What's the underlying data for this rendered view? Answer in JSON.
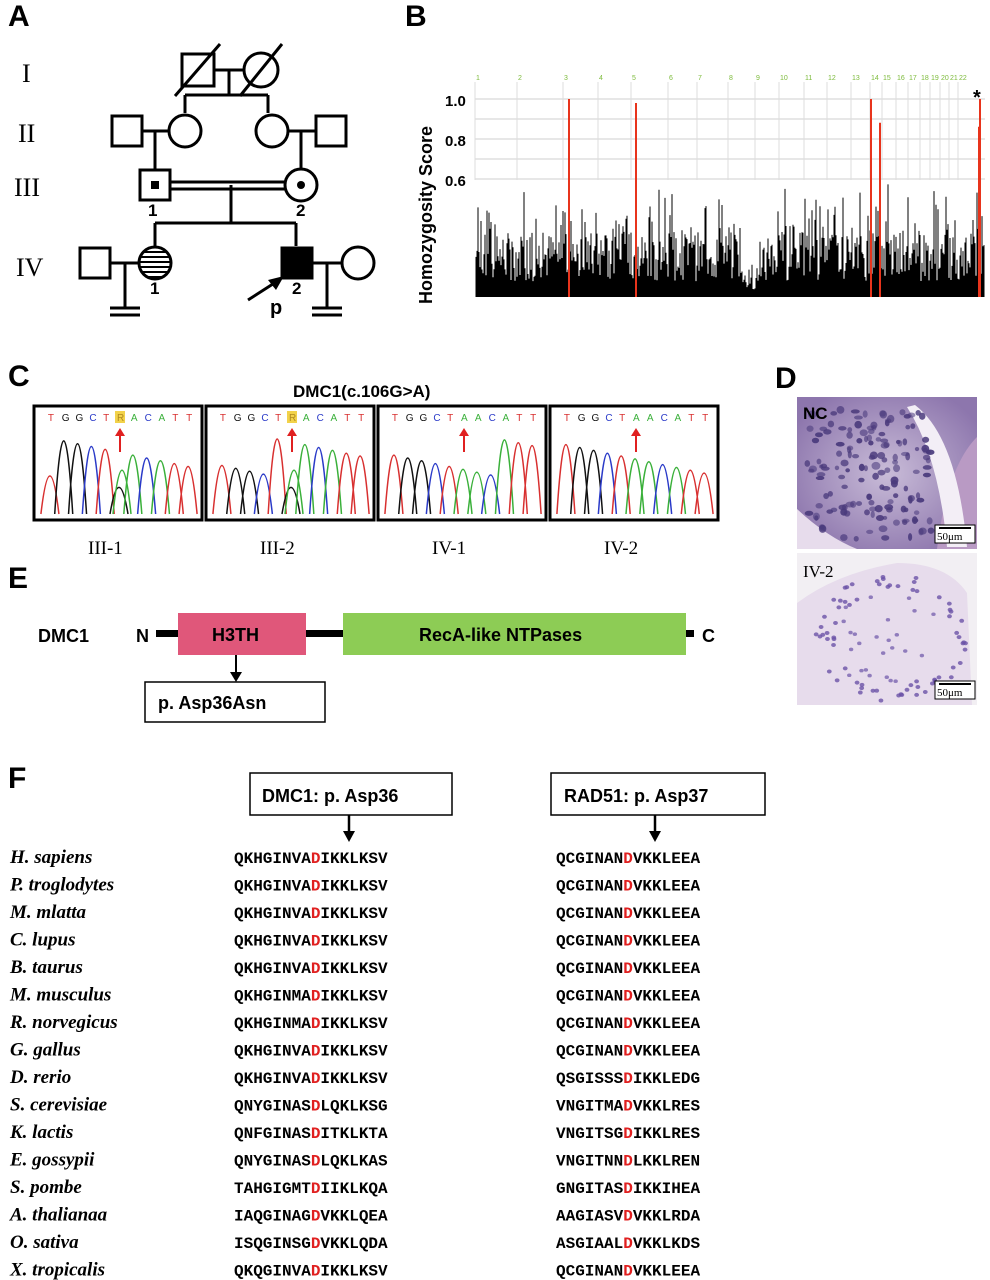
{
  "panels": {
    "A": "A",
    "B": "B",
    "C": "C",
    "D": "D",
    "E": "E",
    "F": "F"
  },
  "pedigree": {
    "generations": [
      "I",
      "II",
      "III",
      "IV"
    ],
    "labels": {
      "III1": "1",
      "III2": "2",
      "IV1": "1",
      "IV2": "2",
      "proband": "p"
    }
  },
  "homozygosity": {
    "ylabel": "Homozygosity Score",
    "yticks": [
      "1.0",
      "0.8",
      "0.6"
    ],
    "chromosomes": [
      "1",
      "2",
      "3",
      "4",
      "5",
      "6",
      "7",
      "8",
      "9",
      "10",
      "11",
      "12",
      "13",
      "14",
      "15",
      "16",
      "17",
      "18",
      "19",
      "20",
      "21",
      "22"
    ],
    "star": "*",
    "colors": {
      "bars": "#000000",
      "highlight": "#e8341c",
      "chrom_label": "#7dbb3c"
    }
  },
  "sanger": {
    "title": "DMC1(c.106G>A)",
    "panels": [
      {
        "seq": [
          "T",
          "G",
          "G",
          "C",
          "T",
          "R",
          "A",
          "C",
          "A",
          "T",
          "T"
        ],
        "label": "III-1"
      },
      {
        "seq": [
          "T",
          "G",
          "G",
          "C",
          "T",
          "R",
          "A",
          "C",
          "A",
          "T",
          "T"
        ],
        "label": "III-2"
      },
      {
        "seq": [
          "T",
          "G",
          "G",
          "C",
          "T",
          "A",
          "A",
          "C",
          "A",
          "T",
          "T"
        ],
        "label": "IV-1"
      },
      {
        "seq": [
          "T",
          "G",
          "G",
          "C",
          "T",
          "A",
          "A",
          "C",
          "A",
          "T",
          "T"
        ],
        "label": "IV-2"
      }
    ]
  },
  "histology": {
    "nc_label": "NC",
    "patient_label": "IV-2",
    "scale": "50μm"
  },
  "domain_diagram": {
    "protein": "DMC1",
    "n": "N",
    "c": "C",
    "h3th": "H3TH",
    "reca": "RecA-like NTPases",
    "variant": "p. Asp36Asn",
    "colors": {
      "h3th": "#e0577a",
      "reca": "#8dcc55"
    }
  },
  "alignment": {
    "dmc1_header": "DMC1: p. Asp36",
    "rad51_header": "RAD51: p. Asp37",
    "rows": [
      {
        "species": "H. sapiens",
        "dmc1": [
          "QKHGINVA",
          "D",
          "IKKLKSV"
        ],
        "rad51": [
          "QCGINAN",
          "D",
          "VKKLEEA"
        ]
      },
      {
        "species": "P. troglodytes",
        "dmc1": [
          "QKHGINVA",
          "D",
          "IKKLKSV"
        ],
        "rad51": [
          "QCGINAN",
          "D",
          "VKKLEEA"
        ]
      },
      {
        "species": "M. mlatta",
        "dmc1": [
          "QKHGINVA",
          "D",
          "IKKLKSV"
        ],
        "rad51": [
          "QCGINAN",
          "D",
          "VKKLEEA"
        ]
      },
      {
        "species": "C. lupus",
        "dmc1": [
          "QKHGINVA",
          "D",
          "IKKLKSV"
        ],
        "rad51": [
          "QCGINAN",
          "D",
          "VKKLEEA"
        ]
      },
      {
        "species": "B. taurus",
        "dmc1": [
          "QKHGINVA",
          "D",
          "IKKLKSV"
        ],
        "rad51": [
          "QCGINAN",
          "D",
          "VKKLEEA"
        ]
      },
      {
        "species": "M. musculus",
        "dmc1": [
          "QKHGINMA",
          "D",
          "IKKLKSV"
        ],
        "rad51": [
          "QCGINAN",
          "D",
          "VKKLEEA"
        ]
      },
      {
        "species": "R. norvegicus",
        "dmc1": [
          "QKHGINMA",
          "D",
          "IKKLKSV"
        ],
        "rad51": [
          "QCGINAN",
          "D",
          "VKKLEEA"
        ]
      },
      {
        "species": "G. gallus",
        "dmc1": [
          "QKHGINVA",
          "D",
          "IKKLKSV"
        ],
        "rad51": [
          "QCGINAN",
          "D",
          "VKKLEEA"
        ]
      },
      {
        "species": "D. rerio",
        "dmc1": [
          "QKHGINVA",
          "D",
          "IKKLKSV"
        ],
        "rad51": [
          "QSGISSS",
          "D",
          "IKKLEDG"
        ]
      },
      {
        "species": "S. cerevisiae",
        "dmc1": [
          "QNYGINAS",
          "D",
          "LQKLKSG"
        ],
        "rad51": [
          "VNGITMA",
          "D",
          "VKKLRES"
        ]
      },
      {
        "species": "K. lactis",
        "dmc1": [
          "QNFGINAS",
          "D",
          "ITKLKTA"
        ],
        "rad51": [
          "VNGITSG",
          "D",
          "IKKLRES"
        ]
      },
      {
        "species": "E. gossypii",
        "dmc1": [
          "QNYGINAS",
          "D",
          "LQKLKAS"
        ],
        "rad51": [
          "VNGITNN",
          "D",
          "LKKLREN"
        ]
      },
      {
        "species": "S. pombe",
        "dmc1": [
          "TAHGIGMT",
          "D",
          "IIKLKQA"
        ],
        "rad51": [
          "GNGITAS",
          "D",
          "IKKIHEA"
        ]
      },
      {
        "species": "A. thalianaa",
        "dmc1": [
          "IAQGINAG",
          "D",
          "VKKLQEA"
        ],
        "rad51": [
          "AAGIASV",
          "D",
          "VKKLRDA"
        ]
      },
      {
        "species": "O. sativa",
        "dmc1": [
          "ISQGINSG",
          "D",
          "VKKLQDA"
        ],
        "rad51": [
          "ASGIAAL",
          "D",
          "VKKLKDS"
        ]
      },
      {
        "species": "X. tropicalis",
        "dmc1": [
          "QKQGINVA",
          "D",
          "IKKLKSV"
        ],
        "rad51": [
          "QCGINAN",
          "D",
          "VKKLEEA"
        ]
      }
    ],
    "colors": {
      "highlight": "#e02020"
    }
  }
}
